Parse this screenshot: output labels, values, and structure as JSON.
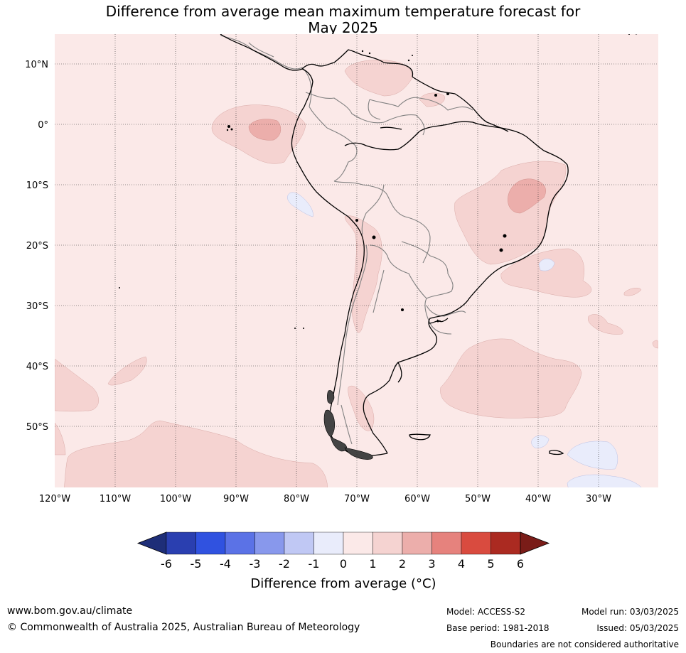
{
  "title_line1": "Difference from average mean maximum temperature forecast for",
  "title_line2": "May 2025",
  "lat_labels": [
    "10°N",
    "0°",
    "10°S",
    "20°S",
    "30°S",
    "40°S",
    "50°S"
  ],
  "lon_labels": [
    "120°W",
    "110°W",
    "100°W",
    "90°W",
    "80°W",
    "70°W",
    "60°W",
    "50°W",
    "40°W",
    "30°W"
  ],
  "colorbar": {
    "ticks": [
      "-6",
      "-5",
      "-4",
      "-3",
      "-2",
      "-1",
      "0",
      "1",
      "2",
      "3",
      "4",
      "5",
      "6"
    ],
    "colors": [
      "#2a3fb0",
      "#3052e0",
      "#5b72e6",
      "#8898ec",
      "#c0c8f4",
      "#e9ecfb",
      "#fbe9e8",
      "#f5d3d1",
      "#ecaeab",
      "#e6827d",
      "#d94b3f",
      "#ab2a21"
    ],
    "low_extend_color": "#1e2e78",
    "high_extend_color": "#7a1c18",
    "label": "Difference from average (°C)"
  },
  "colors": {
    "background_anomaly": "#fbe9e8",
    "light_positive": "#f5d3d1",
    "medium_positive": "#ecaeab",
    "light_negative": "#e9ecfb",
    "coastline": "#000000",
    "borders": "#808080"
  },
  "footer": {
    "website": "www.bom.gov.au/climate",
    "copyright": "© Commonwealth of Australia 2025, Australian Bureau of Meteorology",
    "model": "Model: ACCESS-S2",
    "base_period": "Base period: 1981-2018",
    "model_run": "Model run: 03/03/2025",
    "issued": "Issued: 05/03/2025",
    "disclaimer": "Boundaries are not considered authoritative"
  }
}
